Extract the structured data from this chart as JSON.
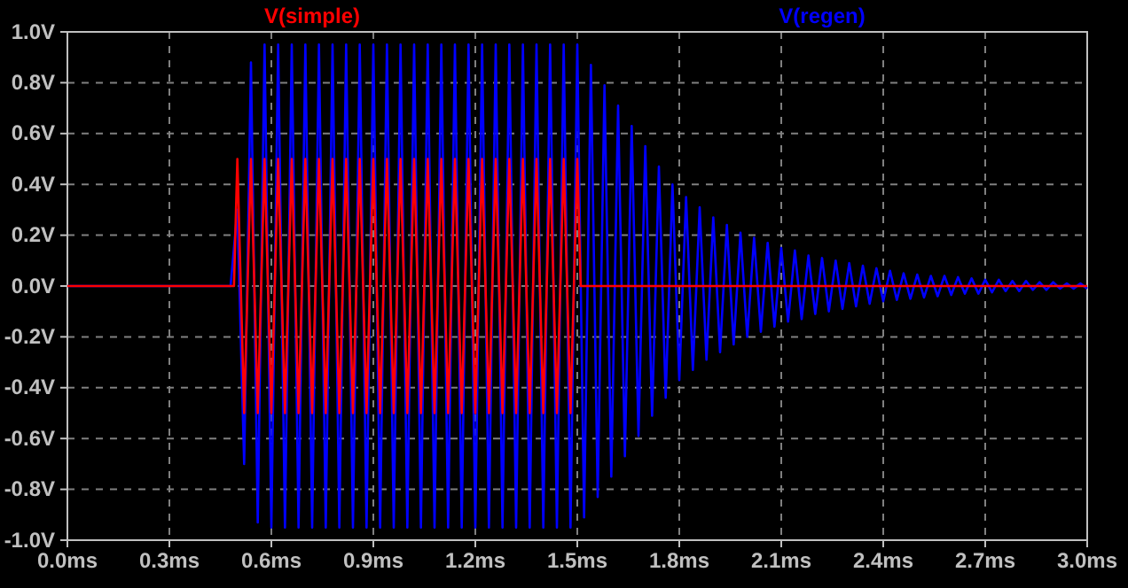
{
  "chart_data": {
    "type": "line",
    "xlim": [
      0,
      3
    ],
    "xticks": [
      {
        "value": 0,
        "label": "0.0ms"
      },
      {
        "value": 0.3,
        "label": "0.3ms"
      },
      {
        "value": 0.6,
        "label": "0.6ms"
      },
      {
        "value": 0.9,
        "label": "0.9ms"
      },
      {
        "value": 1.2,
        "label": "1.2ms"
      },
      {
        "value": 1.5,
        "label": "1.5ms"
      },
      {
        "value": 1.8,
        "label": "1.8ms"
      },
      {
        "value": 2.1,
        "label": "2.1ms"
      },
      {
        "value": 2.4,
        "label": "2.4ms"
      },
      {
        "value": 2.7,
        "label": "2.7ms"
      },
      {
        "value": 3.0,
        "label": "3.0ms"
      }
    ],
    "ylim": [
      -1,
      1
    ],
    "yticks": [
      {
        "value": -1,
        "label": "-1.0V"
      },
      {
        "value": -0.8,
        "label": "-0.8V"
      },
      {
        "value": -0.6,
        "label": "-0.6V"
      },
      {
        "value": -0.4,
        "label": "-0.4V"
      },
      {
        "value": -0.2,
        "label": "-0.2V"
      },
      {
        "value": 0,
        "label": "0.0V"
      },
      {
        "value": 0.2,
        "label": "0.2V"
      },
      {
        "value": 0.4,
        "label": "0.4V"
      },
      {
        "value": 0.6,
        "label": "0.6V"
      },
      {
        "value": 0.8,
        "label": "0.8V"
      },
      {
        "value": 1,
        "label": "1.0V"
      }
    ],
    "grid": true,
    "legend": "top",
    "series": [
      {
        "name": "V(simple)",
        "color": "#ff0000",
        "x": [
          0,
          0.49,
          0.5,
          0.52,
          0.54,
          0.56,
          0.58,
          0.6,
          0.62,
          0.64,
          0.66,
          0.68,
          0.7,
          0.72,
          0.74,
          0.76,
          0.78,
          0.8,
          0.82,
          0.84,
          0.86,
          0.88,
          0.9,
          0.92,
          0.94,
          0.96,
          0.98,
          1,
          1.02,
          1.04,
          1.06,
          1.08,
          1.1,
          1.12,
          1.14,
          1.16,
          1.18,
          1.2,
          1.22,
          1.24,
          1.26,
          1.28,
          1.3,
          1.32,
          1.34,
          1.36,
          1.38,
          1.4,
          1.42,
          1.44,
          1.46,
          1.48,
          1.5,
          1.51,
          3
        ],
        "values": [
          0,
          0,
          0.5,
          -0.5,
          0.5,
          -0.5,
          0.5,
          -0.5,
          0.5,
          -0.5,
          0.5,
          -0.5,
          0.5,
          -0.5,
          0.5,
          -0.5,
          0.5,
          -0.5,
          0.5,
          -0.5,
          0.5,
          -0.5,
          0.5,
          -0.5,
          0.5,
          -0.5,
          0.5,
          -0.5,
          0.5,
          -0.5,
          0.5,
          -0.5,
          0.5,
          -0.5,
          0.5,
          -0.5,
          0.5,
          -0.5,
          0.5,
          -0.5,
          0.5,
          -0.5,
          0.5,
          -0.5,
          0.5,
          -0.5,
          0.5,
          -0.5,
          0.5,
          -0.5,
          0.5,
          -0.5,
          0.5,
          0,
          0
        ]
      },
      {
        "name": "V(regen)",
        "color": "#0000ff",
        "x": [
          0,
          0.48,
          0.5,
          0.52,
          0.54,
          0.56,
          0.58,
          0.6,
          0.62,
          0.64,
          0.66,
          0.68,
          0.7,
          0.72,
          0.74,
          0.76,
          0.78,
          0.8,
          0.82,
          0.84,
          0.86,
          0.88,
          0.9,
          0.92,
          0.94,
          0.96,
          0.98,
          1,
          1.02,
          1.04,
          1.06,
          1.08,
          1.1,
          1.12,
          1.14,
          1.16,
          1.18,
          1.2,
          1.22,
          1.24,
          1.26,
          1.28,
          1.3,
          1.32,
          1.34,
          1.36,
          1.38,
          1.4,
          1.42,
          1.44,
          1.46,
          1.48,
          1.5,
          1.52,
          1.54,
          1.56,
          1.58,
          1.6,
          1.62,
          1.64,
          1.66,
          1.68,
          1.7,
          1.72,
          1.74,
          1.76,
          1.78,
          1.8,
          1.82,
          1.84,
          1.86,
          1.88,
          1.9,
          1.92,
          1.94,
          1.96,
          1.98,
          2,
          2.02,
          2.04,
          2.06,
          2.08,
          2.1,
          2.12,
          2.14,
          2.16,
          2.18,
          2.2,
          2.22,
          2.24,
          2.26,
          2.28,
          2.3,
          2.32,
          2.34,
          2.36,
          2.38,
          2.4,
          2.42,
          2.44,
          2.46,
          2.48,
          2.5,
          2.52,
          2.54,
          2.56,
          2.58,
          2.6,
          2.62,
          2.64,
          2.66,
          2.68,
          2.7,
          2.72,
          2.74,
          2.76,
          2.78,
          2.8,
          2.82,
          2.84,
          2.86,
          2.88,
          2.9,
          2.92,
          2.94,
          2.96,
          2.98,
          3
        ],
        "values": [
          0,
          0,
          0.3,
          -0.7,
          0.88,
          -0.93,
          0.95,
          -0.95,
          0.95,
          -0.95,
          0.95,
          -0.95,
          0.95,
          -0.95,
          0.95,
          -0.95,
          0.95,
          -0.95,
          0.95,
          -0.95,
          0.95,
          -0.95,
          0.95,
          -0.95,
          0.95,
          -0.95,
          0.95,
          -0.95,
          0.95,
          -0.95,
          0.95,
          -0.95,
          0.95,
          -0.95,
          0.95,
          -0.95,
          0.95,
          -0.95,
          0.95,
          -0.95,
          0.95,
          -0.95,
          0.95,
          -0.95,
          0.95,
          -0.95,
          0.95,
          -0.95,
          0.95,
          -0.95,
          0.95,
          -0.95,
          0.95,
          -0.91,
          0.87,
          -0.83,
          0.79,
          -0.75,
          0.71,
          -0.67,
          0.63,
          -0.59,
          0.55,
          -0.51,
          0.47,
          -0.44,
          0.4,
          -0.37,
          0.35,
          -0.33,
          0.31,
          -0.29,
          0.27,
          -0.26,
          0.24,
          -0.23,
          0.21,
          -0.2,
          0.19,
          -0.18,
          0.17,
          -0.16,
          0.15,
          -0.14,
          0.14,
          -0.13,
          0.12,
          -0.11,
          0.11,
          -0.1,
          0.1,
          -0.09,
          0.09,
          -0.08,
          0.08,
          -0.07,
          0.07,
          -0.06,
          0.06,
          -0.055,
          0.05,
          -0.05,
          0.045,
          -0.045,
          0.04,
          -0.04,
          0.04,
          -0.035,
          0.035,
          -0.03,
          0.03,
          -0.03,
          0.025,
          -0.025,
          0.025,
          -0.02,
          0.02,
          -0.02,
          0.02,
          -0.015,
          0.015,
          -0.015,
          0.015,
          -0.01,
          0.01,
          -0.01,
          0.01,
          -0.01
        ]
      }
    ]
  }
}
